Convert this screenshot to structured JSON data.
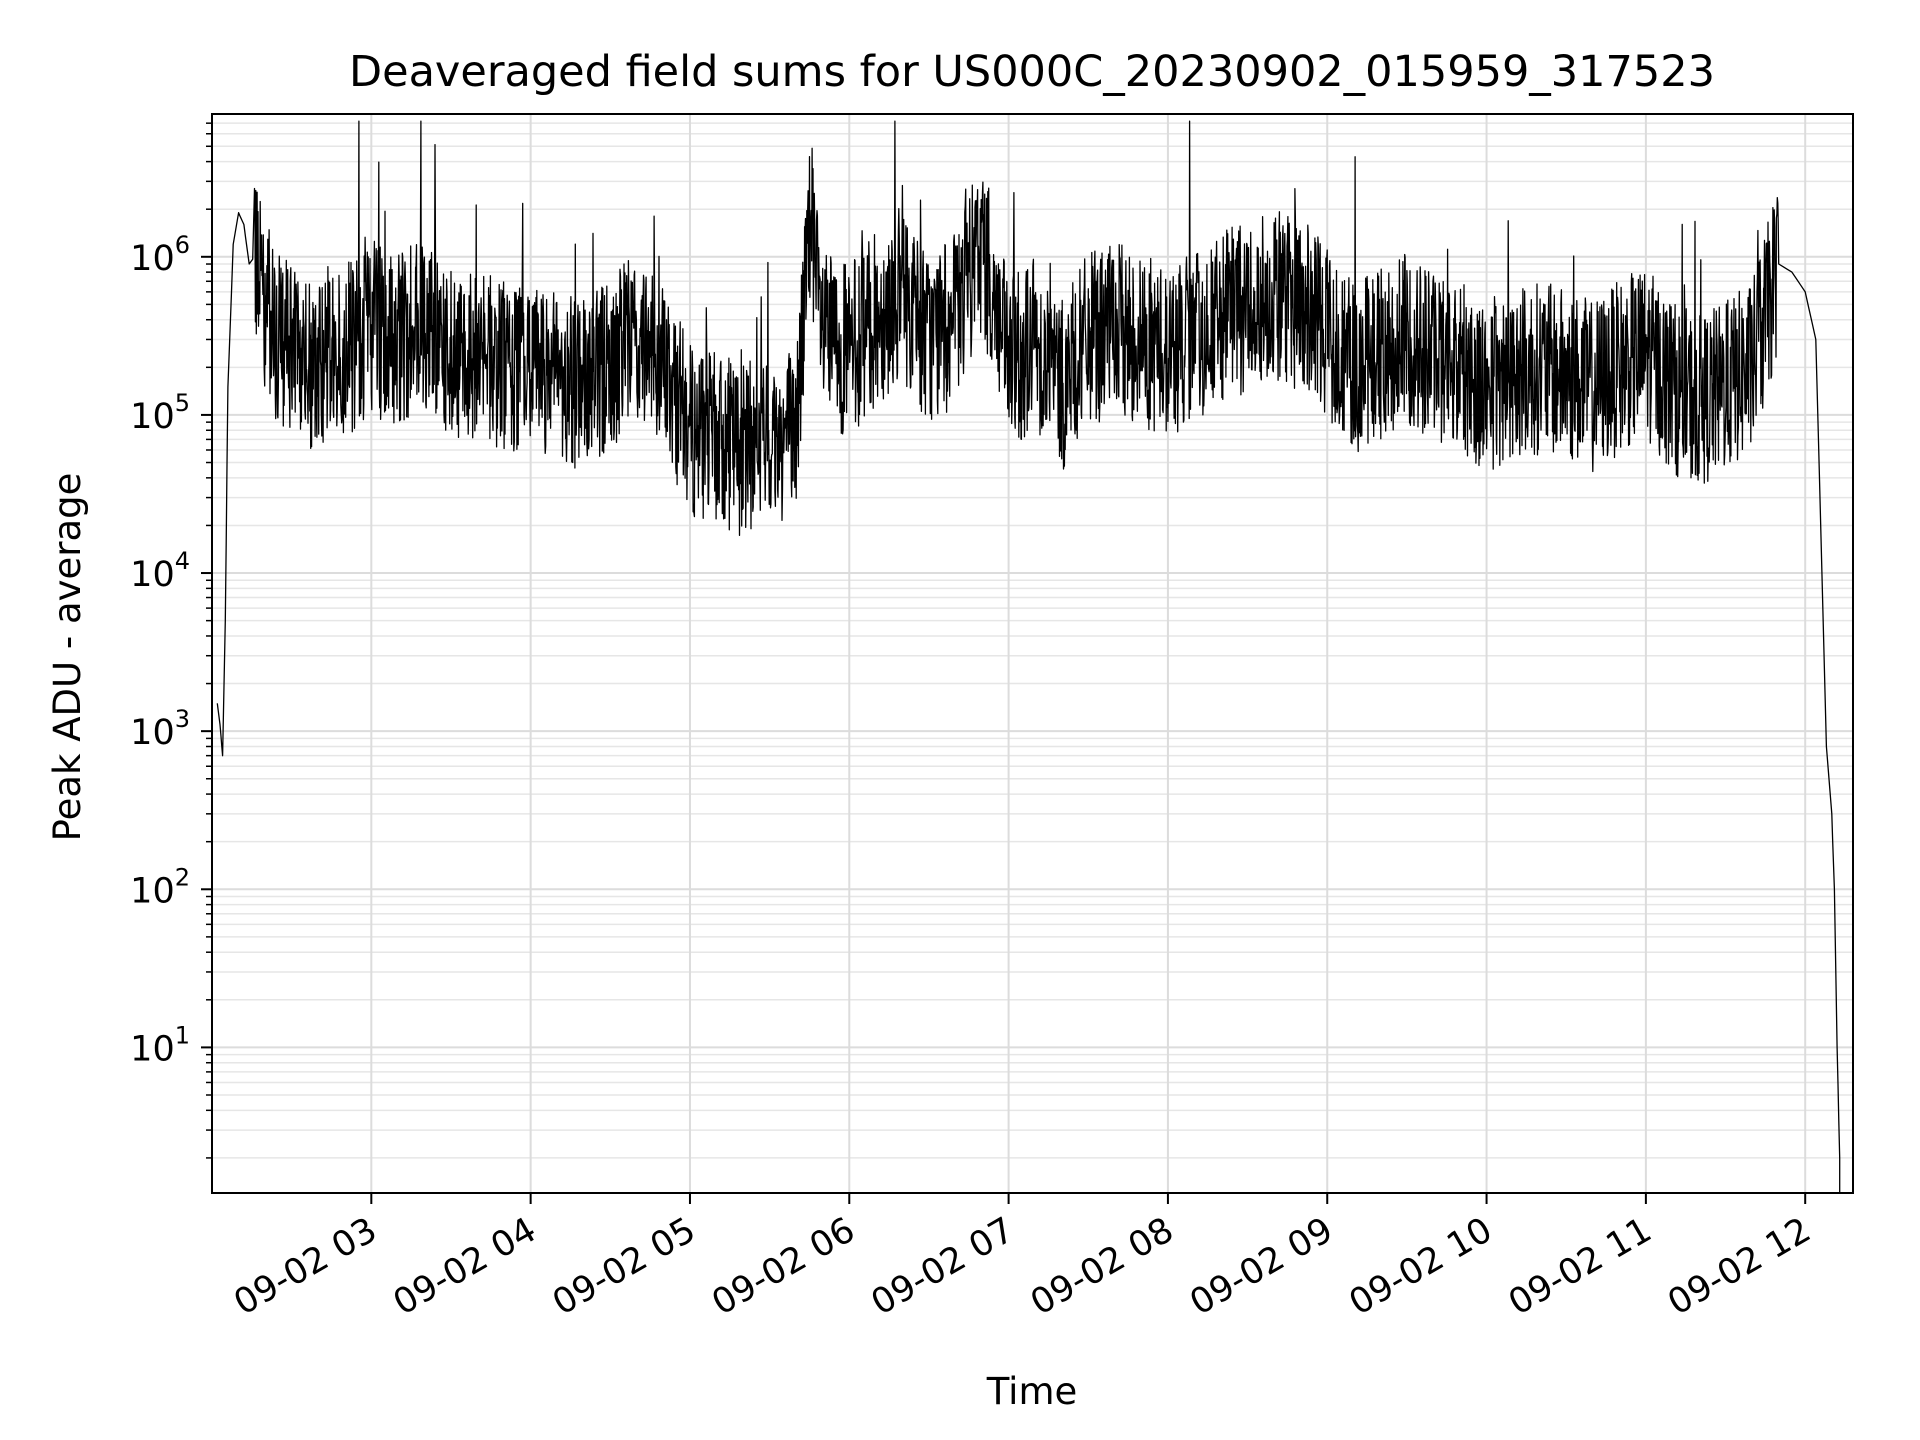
{
  "chart_data": {
    "type": "line",
    "title": "Deaveraged field sums for US000C_20230902_015959_317523",
    "xlabel": "Time",
    "ylabel": "Peak ADU - average",
    "yscale": "log",
    "ylim": [
      1.2,
      8000000
    ],
    "xlim": [
      "09-02 02:00",
      "09-02 12:18"
    ],
    "grid": true,
    "line_color": "#000000",
    "x_ticks": [
      "09-02 03",
      "09-02 04",
      "09-02 05",
      "09-02 06",
      "09-02 07",
      "09-02 08",
      "09-02 09",
      "09-02 10",
      "09-02 11",
      "09-02 12"
    ],
    "y_ticks": [
      {
        "base": "10",
        "exp": "1"
      },
      {
        "base": "10",
        "exp": "2"
      },
      {
        "base": "10",
        "exp": "3"
      },
      {
        "base": "10",
        "exp": "4"
      },
      {
        "base": "10",
        "exp": "5"
      },
      {
        "base": "10",
        "exp": "6"
      }
    ],
    "series": [
      {
        "x": [
          "09-02 02:02",
          "09-02 02:03",
          "09-02 02:04",
          "09-02 02:05",
          "09-02 02:06",
          "09-02 02:08",
          "09-02 02:10",
          "09-02 02:12",
          "09-02 02:14",
          "09-02 02:16",
          "09-02 02:18",
          "09-02 02:20",
          "09-02 02:25",
          "09-02 02:30",
          "09-02 02:35",
          "09-02 02:40",
          "09-02 02:45",
          "09-02 02:50",
          "09-02 03:00",
          "09-02 03:10",
          "09-02 03:20",
          "09-02 03:30",
          "09-02 03:40",
          "09-02 03:50",
          "09-02 04:00",
          "09-02 04:10",
          "09-02 04:20",
          "09-02 04:30",
          "09-02 04:40",
          "09-02 04:50",
          "09-02 05:00",
          "09-02 05:10",
          "09-02 05:20",
          "09-02 05:30",
          "09-02 05:40",
          "09-02 05:45",
          "09-02 05:50",
          "09-02 06:00",
          "09-02 06:10",
          "09-02 06:20",
          "09-02 06:30",
          "09-02 06:40",
          "09-02 06:50",
          "09-02 07:00",
          "09-02 07:10",
          "09-02 07:20",
          "09-02 07:30",
          "09-02 07:40",
          "09-02 07:50",
          "09-02 08:00",
          "09-02 08:10",
          "09-02 08:20",
          "09-02 08:30",
          "09-02 08:40",
          "09-02 08:50",
          "09-02 09:00",
          "09-02 09:10",
          "09-02 09:20",
          "09-02 09:30",
          "09-02 09:40",
          "09-02 09:50",
          "09-02 10:00",
          "09-02 10:10",
          "09-02 10:20",
          "09-02 10:30",
          "09-02 10:40",
          "09-02 10:50",
          "09-02 11:00",
          "09-02 11:10",
          "09-02 11:20",
          "09-02 11:30",
          "09-02 11:40",
          "09-02 11:45",
          "09-02 11:50",
          "09-02 11:55",
          "09-02 12:00",
          "09-02 12:04",
          "09-02 12:08",
          "09-02 12:10",
          "09-02 12:11",
          "09-02 12:12",
          "09-02 12:13"
        ],
        "y": [
          1500,
          1100,
          700,
          5000,
          150000,
          1200000,
          1900000,
          1600000,
          900000,
          1000000,
          800000,
          500000,
          300000,
          250000,
          200000,
          180000,
          300000,
          250000,
          350000,
          300000,
          400000,
          250000,
          250000,
          200000,
          200000,
          180000,
          150000,
          200000,
          350000,
          200000,
          80000,
          70000,
          60000,
          70000,
          80000,
          1500000,
          300000,
          250000,
          400000,
          600000,
          300000,
          400000,
          1200000,
          200000,
          300000,
          150000,
          300000,
          350000,
          300000,
          250000,
          300000,
          400000,
          500000,
          600000,
          500000,
          350000,
          200000,
          250000,
          300000,
          250000,
          200000,
          150000,
          180000,
          200000,
          180000,
          150000,
          200000,
          250000,
          150000,
          120000,
          150000,
          200000,
          400000,
          900000,
          800000,
          600000,
          300000,
          800,
          300,
          100,
          10,
          2
        ]
      }
    ]
  }
}
